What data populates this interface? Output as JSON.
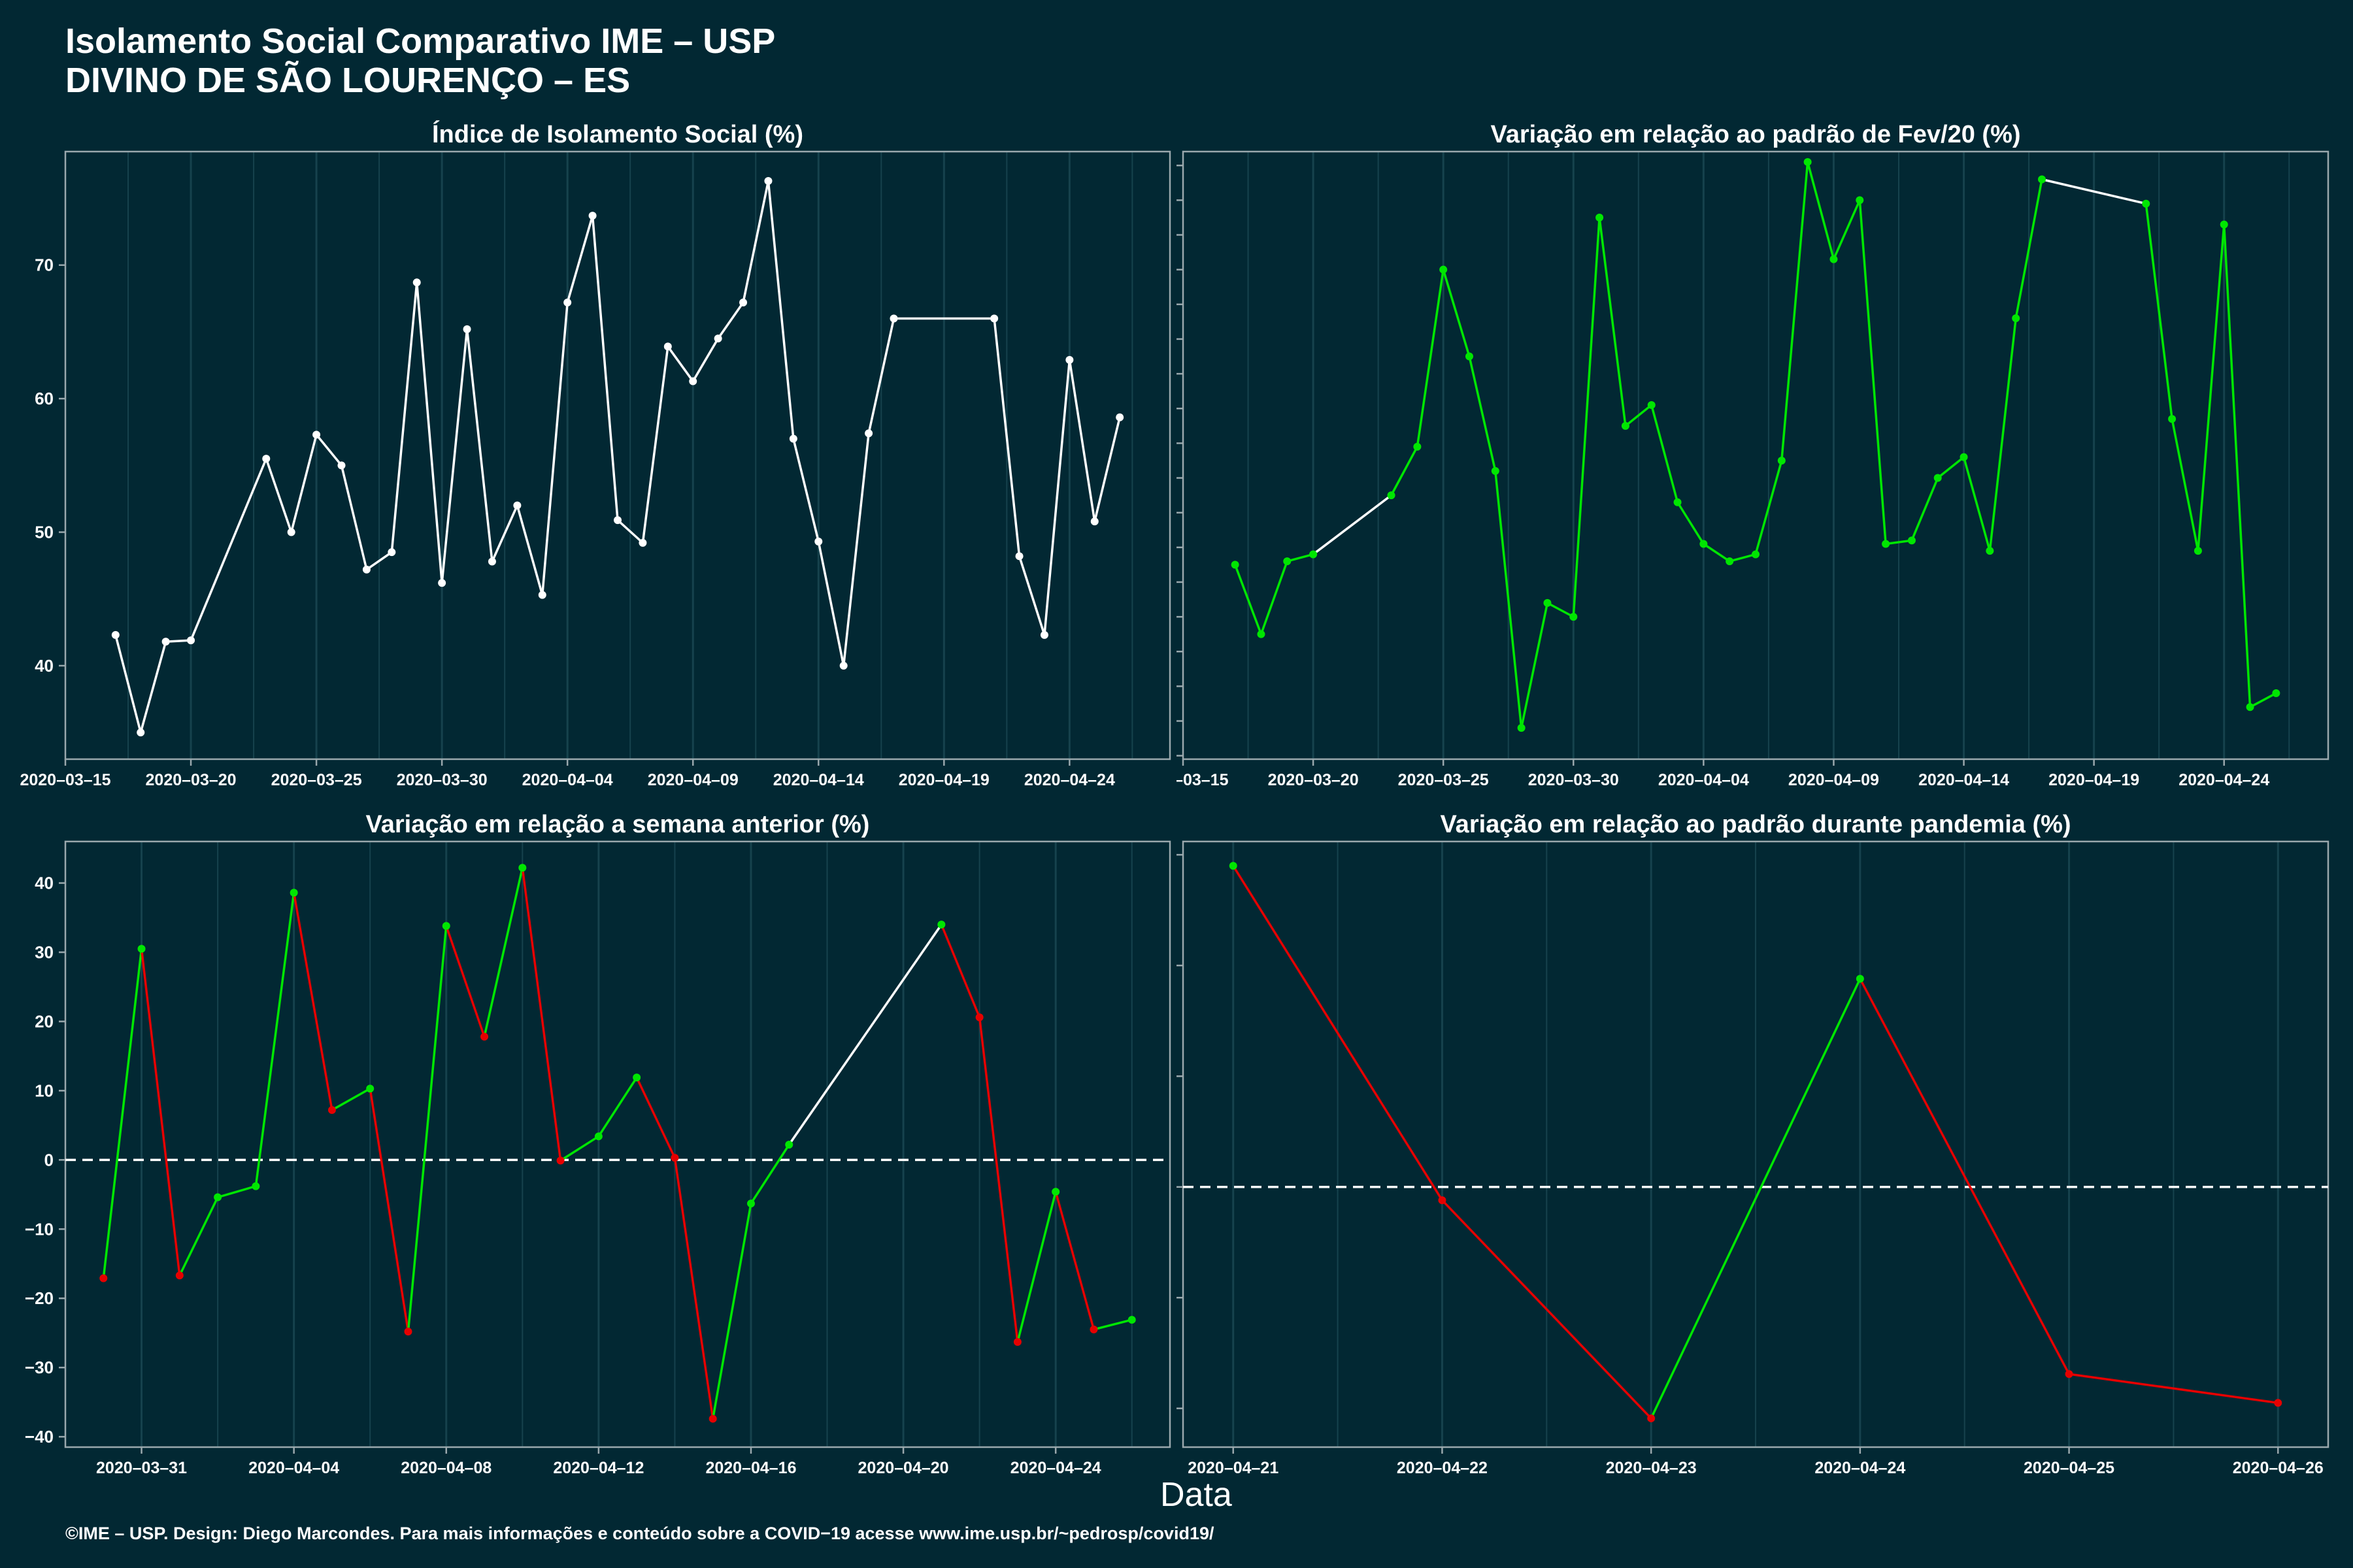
{
  "header": {
    "title_line1": "Isolamento Social Comparativo IME – USP",
    "title_line2": "DIVINO DE SÃO LOURENÇO – ES"
  },
  "shared_xlabel": "Data",
  "footer": "©IME – USP. Design: Diego Marcondes. Para mais informações e conteúdo sobre a COVID−19 acesse www.ime.usp.br/~pedrosp/covid19/",
  "colors": {
    "background": "#022833",
    "white": "#ffffff",
    "increase": "#00e600",
    "decrease": "#e60000",
    "axis": "#9aa8ad",
    "grid": "#16424d"
  },
  "chart_data": [
    {
      "type": "line",
      "title": "Índice de Isolamento Social (%)",
      "x_type": "date",
      "xlim": [
        "2020-03-15",
        "2020-04-28"
      ],
      "ylim": [
        33,
        78.5
      ],
      "x_ticks": [
        "2020-03-15",
        "2020-03-20",
        "2020-03-25",
        "2020-03-30",
        "2020-04-04",
        "2020-04-09",
        "2020-04-14",
        "2020-04-19",
        "2020-04-24"
      ],
      "y_ticks": [
        40,
        50,
        60,
        70
      ],
      "color_mode": "white",
      "zero_line": false,
      "series": [
        {
          "x": [
            "2020-03-17",
            "2020-03-18",
            "2020-03-19",
            "2020-03-20",
            "2020-03-23",
            "2020-03-24",
            "2020-03-25",
            "2020-03-26",
            "2020-03-27",
            "2020-03-28",
            "2020-03-29",
            "2020-03-30",
            "2020-03-31",
            "2020-04-01",
            "2020-04-02",
            "2020-04-03",
            "2020-04-04",
            "2020-04-05",
            "2020-04-06",
            "2020-04-07",
            "2020-04-08",
            "2020-04-09",
            "2020-04-10",
            "2020-04-11",
            "2020-04-12",
            "2020-04-13",
            "2020-04-14",
            "2020-04-15",
            "2020-04-16",
            "2020-04-17",
            "2020-04-21",
            "2020-04-22",
            "2020-04-23",
            "2020-04-24",
            "2020-04-25",
            "2020-04-26"
          ],
          "y": [
            42.3,
            35.0,
            41.8,
            41.9,
            55.5,
            50.0,
            57.3,
            55.0,
            47.2,
            48.5,
            68.7,
            46.2,
            65.2,
            47.8,
            52.0,
            45.3,
            67.2,
            73.7,
            50.9,
            49.2,
            63.9,
            61.3,
            64.5,
            67.2,
            76.3,
            57.0,
            49.3,
            40.0,
            57.4,
            66.0,
            66.0,
            48.2,
            42.3,
            62.9,
            50.8,
            58.6
          ]
        }
      ]
    },
    {
      "type": "line",
      "title": "Variação em relação ao padrão de Fev/20 (%)",
      "x_type": "date",
      "xlim": [
        "2020-03-15",
        "2020-04-28"
      ],
      "ylim": [
        29,
        204
      ],
      "x_ticks": [
        "2020-03-15",
        "2020-03-20",
        "2020-03-25",
        "2020-03-30",
        "2020-04-04",
        "2020-04-09",
        "2020-04-14",
        "2020-04-19",
        "2020-04-24"
      ],
      "y_ticks": [
        30,
        40,
        50,
        60,
        70,
        80,
        90,
        100,
        110,
        120,
        130,
        140,
        150,
        160,
        170,
        180,
        190,
        200
      ],
      "color_mode": "green_gaps_white",
      "zero_line": false,
      "series": [
        {
          "x": [
            "2020-03-17",
            "2020-03-18",
            "2020-03-19",
            "2020-03-20",
            "2020-03-23",
            "2020-03-24",
            "2020-03-25",
            "2020-03-26",
            "2020-03-27",
            "2020-03-28",
            "2020-03-29",
            "2020-03-30",
            "2020-03-31",
            "2020-04-01",
            "2020-04-02",
            "2020-04-03",
            "2020-04-04",
            "2020-04-05",
            "2020-04-06",
            "2020-04-07",
            "2020-04-08",
            "2020-04-09",
            "2020-04-10",
            "2020-04-11",
            "2020-04-12",
            "2020-04-13",
            "2020-04-14",
            "2020-04-15",
            "2020-04-16",
            "2020-04-17",
            "2020-04-21",
            "2020-04-22",
            "2020-04-23",
            "2020-04-24",
            "2020-04-25",
            "2020-04-26"
          ],
          "y": [
            85,
            65,
            86,
            88,
            105,
            119,
            170,
            145,
            112,
            38,
            74,
            70,
            185,
            125,
            131,
            103,
            91,
            86,
            88,
            115,
            201,
            173,
            190,
            91,
            92,
            110,
            116,
            89,
            156,
            196,
            189,
            127,
            89,
            183,
            44,
            48
          ]
        }
      ]
    },
    {
      "type": "line",
      "title": "Variação em relação a semana anterior (%)",
      "x_type": "date",
      "xlim": [
        "2020-03-29",
        "2020-04-27"
      ],
      "ylim": [
        -41.5,
        46
      ],
      "x_ticks": [
        "2020-03-31",
        "2020-04-04",
        "2020-04-08",
        "2020-04-12",
        "2020-04-16",
        "2020-04-20",
        "2020-04-24"
      ],
      "y_ticks": [
        -40,
        -30,
        -20,
        -10,
        0,
        10,
        20,
        30,
        40
      ],
      "color_mode": "by_direction",
      "zero_line": true,
      "series": [
        {
          "x": [
            "2020-03-30",
            "2020-03-31",
            "2020-04-01",
            "2020-04-02",
            "2020-04-03",
            "2020-04-04",
            "2020-04-05",
            "2020-04-06",
            "2020-04-07",
            "2020-04-08",
            "2020-04-09",
            "2020-04-10",
            "2020-04-11",
            "2020-04-12",
            "2020-04-13",
            "2020-04-14",
            "2020-04-15",
            "2020-04-16",
            "2020-04-17",
            "2020-04-21",
            "2020-04-22",
            "2020-04-23",
            "2020-04-24",
            "2020-04-25",
            "2020-04-26"
          ],
          "y": [
            -17.1,
            30.5,
            -16.7,
            -5.4,
            -3.8,
            38.6,
            7.2,
            10.3,
            -24.8,
            33.8,
            17.8,
            42.2,
            -0.1,
            3.4,
            11.9,
            0.3,
            -37.4,
            -6.3,
            2.2,
            34.0,
            20.6,
            -26.3,
            -4.6,
            -24.5,
            -23.1
          ]
        }
      ]
    },
    {
      "type": "line",
      "title": "Variação em relação ao padrão durante pandemia (%)",
      "x_type": "date",
      "xlim": [
        "2020-04-20.76",
        "2020-04-26.24"
      ],
      "ylim": [
        -23.5,
        31.2
      ],
      "x_ticks": [
        "2020-04-21",
        "2020-04-22",
        "2020-04-23",
        "2020-04-24",
        "2020-04-25",
        "2020-04-26"
      ],
      "y_ticks": [
        -20,
        -10,
        0,
        10,
        20,
        30
      ],
      "color_mode": "by_direction",
      "zero_line": true,
      "series": [
        {
          "x": [
            "2020-04-21",
            "2020-04-22",
            "2020-04-23",
            "2020-04-24",
            "2020-04-25",
            "2020-04-26"
          ],
          "y": [
            29.0,
            -1.2,
            -20.9,
            18.8,
            -16.9,
            -19.5
          ]
        }
      ]
    }
  ]
}
